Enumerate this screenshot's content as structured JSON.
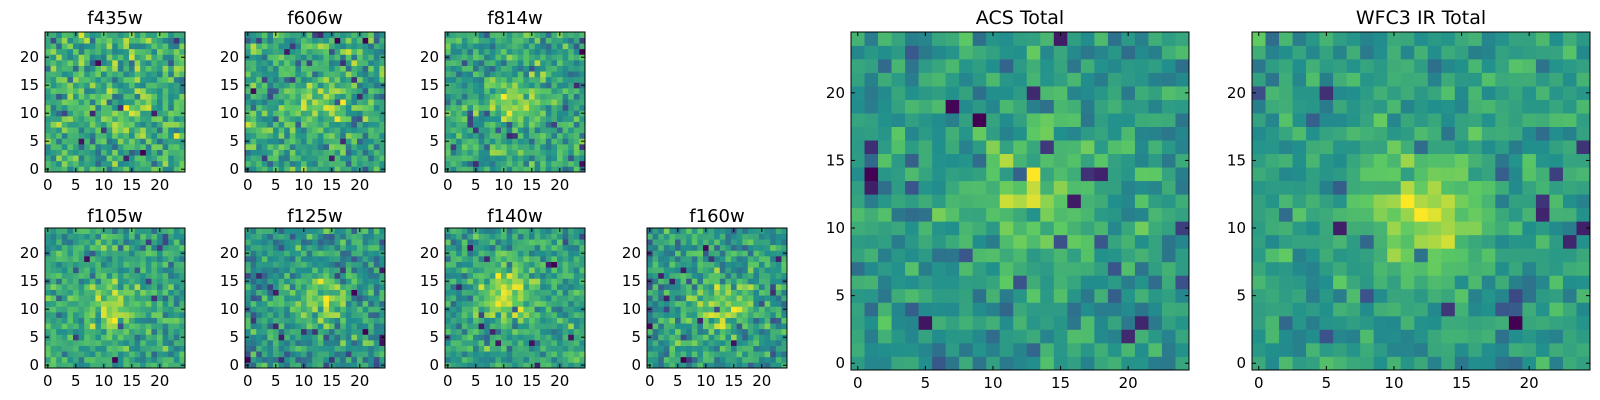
{
  "figure": {
    "description": "Postage-stamp cutouts per filter plus ACS and WFC3 IR totals",
    "colormap": [
      "#440154",
      "#3b528b",
      "#21908d",
      "#5dc963",
      "#fde725"
    ],
    "frame_color": "#000000"
  },
  "chart_data": [
    {
      "type": "heatmap",
      "title": "f435w",
      "grid": 25,
      "colormap": "viridis",
      "xticks": [
        0,
        5,
        10,
        15,
        20
      ],
      "yticks": [
        0,
        5,
        10,
        15,
        20
      ],
      "xlim": [
        -0.5,
        24.5
      ],
      "ylim": [
        -0.5,
        24.5
      ],
      "seed": 11,
      "noise": 0.55,
      "signal": 0.12,
      "sigma": 3.0,
      "center": [
        15,
        8
      ]
    },
    {
      "type": "heatmap",
      "title": "f606w",
      "grid": 25,
      "colormap": "viridis",
      "xticks": [
        0,
        5,
        10,
        15,
        20
      ],
      "yticks": [
        0,
        5,
        10,
        15,
        20
      ],
      "xlim": [
        -0.5,
        24.5
      ],
      "ylim": [
        -0.5,
        24.5
      ],
      "seed": 23,
      "noise": 0.5,
      "signal": 0.3,
      "sigma": 3.2,
      "center": [
        13,
        12
      ]
    },
    {
      "type": "heatmap",
      "title": "f814w",
      "grid": 25,
      "colormap": "viridis",
      "xticks": [
        0,
        5,
        10,
        15,
        20
      ],
      "yticks": [
        0,
        5,
        10,
        15,
        20
      ],
      "xlim": [
        -0.5,
        24.5
      ],
      "ylim": [
        -0.5,
        24.5
      ],
      "seed": 37,
      "noise": 0.5,
      "signal": 0.3,
      "sigma": 3.0,
      "center": [
        12,
        12
      ]
    },
    {
      "type": "heatmap",
      "title": "f105w",
      "grid": 25,
      "colormap": "viridis",
      "xticks": [
        0,
        5,
        10,
        15,
        20
      ],
      "yticks": [
        0,
        5,
        10,
        15,
        20
      ],
      "xlim": [
        -0.5,
        24.5
      ],
      "ylim": [
        -0.5,
        24.5
      ],
      "seed": 41,
      "noise": 0.5,
      "signal": 0.4,
      "sigma": 3.2,
      "center": [
        12,
        11
      ]
    },
    {
      "type": "heatmap",
      "title": "f125w",
      "grid": 25,
      "colormap": "viridis",
      "xticks": [
        0,
        5,
        10,
        15,
        20
      ],
      "yticks": [
        0,
        5,
        10,
        15,
        20
      ],
      "xlim": [
        -0.5,
        24.5
      ],
      "ylim": [
        -0.5,
        24.5
      ],
      "seed": 53,
      "noise": 0.5,
      "signal": 0.4,
      "sigma": 3.2,
      "center": [
        13,
        12
      ]
    },
    {
      "type": "heatmap",
      "title": "f140w",
      "grid": 25,
      "colormap": "viridis",
      "xticks": [
        0,
        5,
        10,
        15,
        20
      ],
      "yticks": [
        0,
        5,
        10,
        15,
        20
      ],
      "xlim": [
        -0.5,
        24.5
      ],
      "ylim": [
        -0.5,
        24.5
      ],
      "seed": 67,
      "noise": 0.45,
      "signal": 0.45,
      "sigma": 3.5,
      "center": [
        11,
        13
      ]
    },
    {
      "type": "heatmap",
      "title": "f160w",
      "grid": 25,
      "colormap": "viridis",
      "xticks": [
        0,
        5,
        10,
        15,
        20
      ],
      "yticks": [
        0,
        5,
        10,
        15,
        20
      ],
      "xlim": [
        -0.5,
        24.5
      ],
      "ylim": [
        -0.5,
        24.5
      ],
      "seed": 79,
      "noise": 0.5,
      "signal": 0.4,
      "sigma": 3.2,
      "center": [
        13,
        11
      ]
    },
    {
      "type": "heatmap",
      "title": "ACS Total",
      "grid": 25,
      "colormap": "viridis",
      "xticks": [
        0,
        5,
        10,
        15,
        20
      ],
      "yticks": [
        0,
        5,
        10,
        15,
        20
      ],
      "xlim": [
        -0.5,
        24.5
      ],
      "ylim": [
        -0.5,
        24.5
      ],
      "seed": 97,
      "noise": 0.4,
      "signal": 0.4,
      "sigma": 3.5,
      "center": [
        13,
        12
      ]
    },
    {
      "type": "heatmap",
      "title": "WFC3 IR Total",
      "grid": 25,
      "colormap": "viridis",
      "xticks": [
        0,
        5,
        10,
        15,
        20
      ],
      "yticks": [
        0,
        5,
        10,
        15,
        20
      ],
      "xlim": [
        -0.5,
        24.5
      ],
      "ylim": [
        -0.5,
        24.5
      ],
      "seed": 113,
      "noise": 0.35,
      "signal": 0.5,
      "sigma": 3.3,
      "center": [
        12,
        11
      ]
    }
  ]
}
